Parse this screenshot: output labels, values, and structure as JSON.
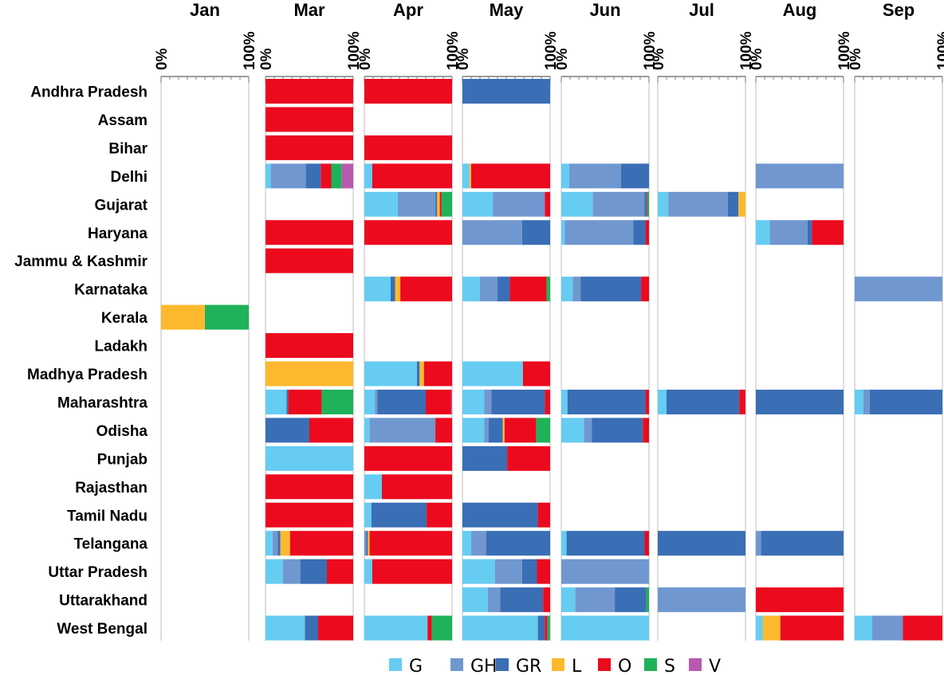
{
  "chart_data": {
    "type": "bar",
    "stacked": true,
    "normalized_to": "100%",
    "orientation": "horizontal",
    "tick_labels": [
      "0%",
      "100%"
    ],
    "months": [
      "Jan",
      "Mar",
      "Apr",
      "May",
      "Jun",
      "Jul",
      "Aug",
      "Sep"
    ],
    "categories": [
      "Andhra Pradesh",
      "Assam",
      "Bihar",
      "Delhi",
      "Gujarat",
      "Haryana",
      "Jammu & Kashmir",
      "Karnataka",
      "Kerala",
      "Ladakh",
      "Madhya Pradesh",
      "Maharashtra",
      "Odisha",
      "Punjab",
      "Rajasthan",
      "Tamil Nadu",
      "Telangana",
      "Uttar Pradesh",
      "Uttarakhand",
      "West Bengal"
    ],
    "series": [
      {
        "name": "G",
        "color": "#66CCF2"
      },
      {
        "name": "GH",
        "color": "#7097CF"
      },
      {
        "name": "GR",
        "color": "#3A6EB5"
      },
      {
        "name": "L",
        "color": "#FDB92E"
      },
      {
        "name": "O",
        "color": "#EC0A1E"
      },
      {
        "name": "S",
        "color": "#1FB25A"
      },
      {
        "name": "V",
        "color": "#B85AAE"
      }
    ],
    "data": {
      "Jan": {
        "Kerala": [
          0,
          0,
          0,
          50,
          0,
          50,
          0
        ]
      },
      "Mar": {
        "Andhra Pradesh": [
          0,
          0,
          0,
          0,
          100,
          0,
          0
        ],
        "Assam": [
          0,
          0,
          0,
          0,
          100,
          0,
          0
        ],
        "Bihar": [
          0,
          0,
          0,
          0,
          100,
          0,
          0
        ],
        "Delhi": [
          6,
          40,
          17,
          0,
          12,
          12,
          13
        ],
        "Haryana": [
          0,
          0,
          0,
          0,
          100,
          0,
          0
        ],
        "Jammu & Kashmir": [
          0,
          0,
          0,
          0,
          100,
          0,
          0
        ],
        "Ladakh": [
          0,
          0,
          0,
          0,
          100,
          0,
          0
        ],
        "Madhya Pradesh": [
          0,
          0,
          0,
          100,
          0,
          0,
          0
        ],
        "Maharashtra": [
          24,
          0,
          2,
          0,
          38,
          36,
          0
        ],
        "Odisha": [
          0,
          0,
          50,
          0,
          50,
          0,
          0
        ],
        "Punjab": [
          100,
          0,
          0,
          0,
          0,
          0,
          0
        ],
        "Rajasthan": [
          0,
          0,
          0,
          0,
          100,
          0,
          0
        ],
        "Tamil Nadu": [
          0,
          0,
          0,
          0,
          100,
          0,
          0
        ],
        "Telangana": [
          8,
          6,
          3,
          11,
          72,
          0,
          0
        ],
        "Uttar Pradesh": [
          20,
          20,
          30,
          0,
          30,
          0,
          0
        ],
        "West Bengal": [
          45,
          0,
          15,
          0,
          40,
          0,
          0
        ]
      },
      "Apr": {
        "Andhra Pradesh": [
          0,
          0,
          0,
          0,
          100,
          0,
          0
        ],
        "Bihar": [
          0,
          0,
          0,
          0,
          100,
          0,
          0
        ],
        "Delhi": [
          9,
          0,
          0,
          0,
          91,
          0,
          0
        ],
        "Gujarat": [
          38,
          43,
          2,
          3,
          2,
          12,
          0
        ],
        "Haryana": [
          0,
          0,
          0,
          0,
          100,
          0,
          0
        ],
        "Karnataka": [
          30,
          0,
          5,
          6,
          59,
          0,
          0
        ],
        "Madhya Pradesh": [
          60,
          0,
          3,
          5,
          32,
          0,
          0
        ],
        "Maharashtra": [
          12,
          3,
          55,
          0,
          29,
          0,
          1
        ],
        "Odisha": [
          6,
          75,
          0,
          0,
          19,
          0,
          0
        ],
        "Punjab": [
          0,
          0,
          0,
          0,
          100,
          0,
          0
        ],
        "Rajasthan": [
          20,
          0,
          0,
          0,
          80,
          0,
          0
        ],
        "Tamil Nadu": [
          8,
          0,
          63,
          0,
          29,
          0,
          0
        ],
        "Telangana": [
          0,
          2,
          2,
          2,
          94,
          0,
          0
        ],
        "Uttar Pradesh": [
          9,
          0,
          0,
          0,
          91,
          0,
          0
        ],
        "West Bengal": [
          72,
          0,
          0,
          0,
          5,
          23,
          0
        ]
      },
      "May": {
        "Andhra Pradesh": [
          0,
          0,
          100,
          0,
          0,
          0,
          0
        ],
        "Delhi": [
          8,
          0,
          0,
          2,
          90,
          0,
          0
        ],
        "Gujarat": [
          35,
          59,
          0,
          0,
          6,
          0,
          0
        ],
        "Haryana": [
          0,
          68,
          32,
          0,
          0,
          0,
          0
        ],
        "Karnataka": [
          20,
          20,
          14,
          0,
          42,
          4,
          0
        ],
        "Madhya Pradesh": [
          69,
          0,
          0,
          0,
          31,
          0,
          0
        ],
        "Maharashtra": [
          25,
          8,
          61,
          0,
          6,
          0,
          0
        ],
        "Odisha": [
          25,
          5,
          16,
          2,
          36,
          16,
          0
        ],
        "Punjab": [
          0,
          0,
          51,
          0,
          49,
          0,
          0
        ],
        "Tamil Nadu": [
          0,
          0,
          86,
          0,
          14,
          0,
          0
        ],
        "Telangana": [
          10,
          17,
          73,
          0,
          0,
          0,
          0
        ],
        "Uttar Pradesh": [
          37,
          31,
          17,
          0,
          15,
          0,
          0
        ],
        "Uttarakhand": [
          29,
          14,
          49,
          0,
          8,
          0,
          0
        ],
        "West Bengal": [
          86,
          0,
          8,
          0,
          3,
          3,
          0
        ]
      },
      "Jun": {
        "Delhi": [
          9,
          59,
          32,
          0,
          0,
          0,
          0
        ],
        "Gujarat": [
          36,
          59,
          2,
          0,
          1,
          2,
          0
        ],
        "Haryana": [
          4,
          78,
          14,
          0,
          4,
          0,
          0
        ],
        "Karnataka": [
          13,
          9,
          69,
          0,
          9,
          0,
          0
        ],
        "Maharashtra": [
          7,
          0,
          89,
          0,
          4,
          0,
          0
        ],
        "Odisha": [
          26,
          9,
          58,
          0,
          7,
          0,
          0
        ],
        "Telangana": [
          6,
          0,
          89,
          0,
          5,
          0,
          0
        ],
        "Uttar Pradesh": [
          0,
          100,
          0,
          0,
          0,
          0,
          0
        ],
        "Uttarakhand": [
          16,
          45,
          36,
          0,
          0,
          3,
          0
        ],
        "West Bengal": [
          100,
          0,
          0,
          0,
          0,
          0,
          0
        ]
      },
      "Jul": {
        "Gujarat": [
          12,
          68,
          12,
          8,
          0,
          0,
          0
        ],
        "Maharashtra": [
          10,
          0,
          83,
          0,
          7,
          0,
          0
        ],
        "Telangana": [
          0,
          0,
          100,
          0,
          0,
          0,
          0
        ],
        "Uttarakhand": [
          0,
          100,
          0,
          0,
          0,
          0,
          0
        ]
      },
      "Aug": {
        "Delhi": [
          0,
          100,
          0,
          0,
          0,
          0,
          0
        ],
        "Haryana": [
          16,
          43,
          5,
          0,
          36,
          0,
          0
        ],
        "Maharashtra": [
          0,
          0,
          100,
          0,
          0,
          0,
          0
        ],
        "Telangana": [
          0,
          6,
          94,
          0,
          0,
          0,
          0
        ],
        "Uttarakhand": [
          0,
          0,
          0,
          0,
          100,
          0,
          0
        ],
        "West Bengal": [
          8,
          0,
          0,
          20,
          72,
          0,
          0
        ]
      },
      "Sep": {
        "Karnataka": [
          0,
          100,
          0,
          0,
          0,
          0,
          0
        ],
        "Maharashtra": [
          10,
          7,
          83,
          0,
          0,
          0,
          0
        ],
        "West Bengal": [
          20,
          35,
          0,
          0,
          45,
          0,
          0
        ]
      }
    }
  }
}
